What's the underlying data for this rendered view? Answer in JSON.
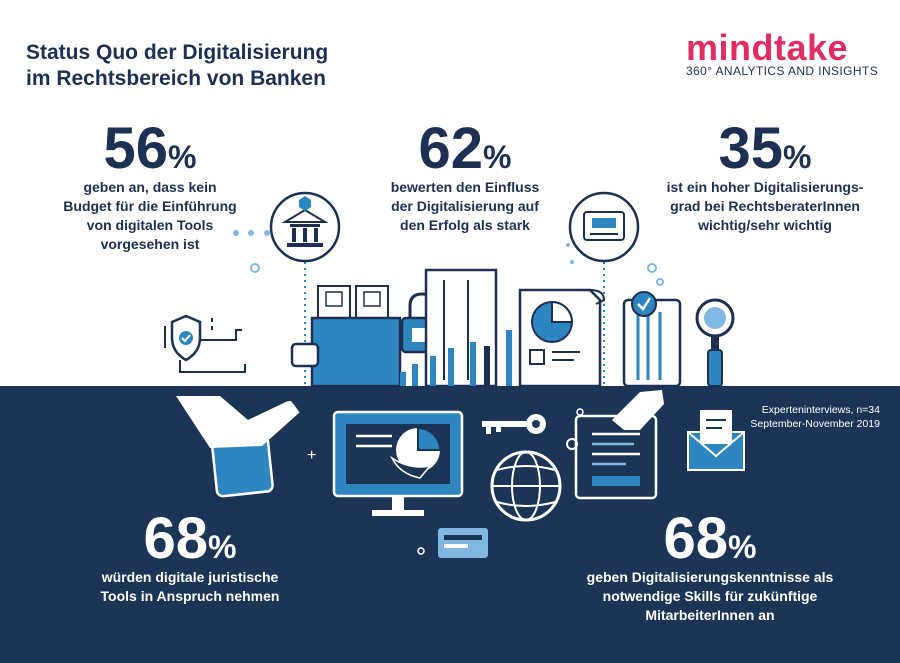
{
  "title": {
    "line1": "Status Quo der Digitalisierung",
    "line2": "im Rechtsbereich von Banken"
  },
  "logo": {
    "name": "mindtake",
    "tagline": "360° ANALYTICS AND INSIGHTS",
    "brand_color": "#e22d62"
  },
  "stats": [
    {
      "value": "56",
      "unit": "%",
      "desc": [
        "geben an, dass kein",
        "Budget für die Einführung",
        "von digitalen Tools",
        "vorgesehen ist"
      ]
    },
    {
      "value": "62",
      "unit": "%",
      "desc": [
        "bewerten den Einfluss",
        "der Digitalisierung auf",
        "den Erfolg als stark"
      ]
    },
    {
      "value": "35",
      "unit": "%",
      "desc": [
        "ist ein hoher Digitalisierungs-",
        "grad bei RechtsberaterInnen",
        "wichtig/sehr wichtig"
      ]
    },
    {
      "value": "68",
      "unit": "%",
      "desc": [
        "würden digitale juristische",
        "Tools in Anspruch nehmen"
      ]
    },
    {
      "value": "68",
      "unit": "%",
      "desc": [
        "geben Digitalisierungskenntnisse als",
        "notwendige Skills für zukünftige",
        "MitarbeiterInnen an"
      ]
    }
  ],
  "source": {
    "line1": "Experteninterviews, n=34",
    "line2": "September-November 2019"
  },
  "colors": {
    "navy": "#1c3557",
    "blue": "#2e86c1",
    "light_blue": "#7fb7e0",
    "dark_text": "#1d2f52"
  },
  "icons": [
    "bank-icon",
    "shield-check-icon",
    "wallet-icon",
    "lock-icon",
    "bar-chart-icon",
    "pie-chart-document-icon",
    "cash-register-icon",
    "id-card-check-icon",
    "magnifier-icon",
    "tablet-hand-icon",
    "monitor-pie-icon",
    "key-icon",
    "globe-icon",
    "document-hand-icon",
    "envelope-icon",
    "card-icon"
  ]
}
